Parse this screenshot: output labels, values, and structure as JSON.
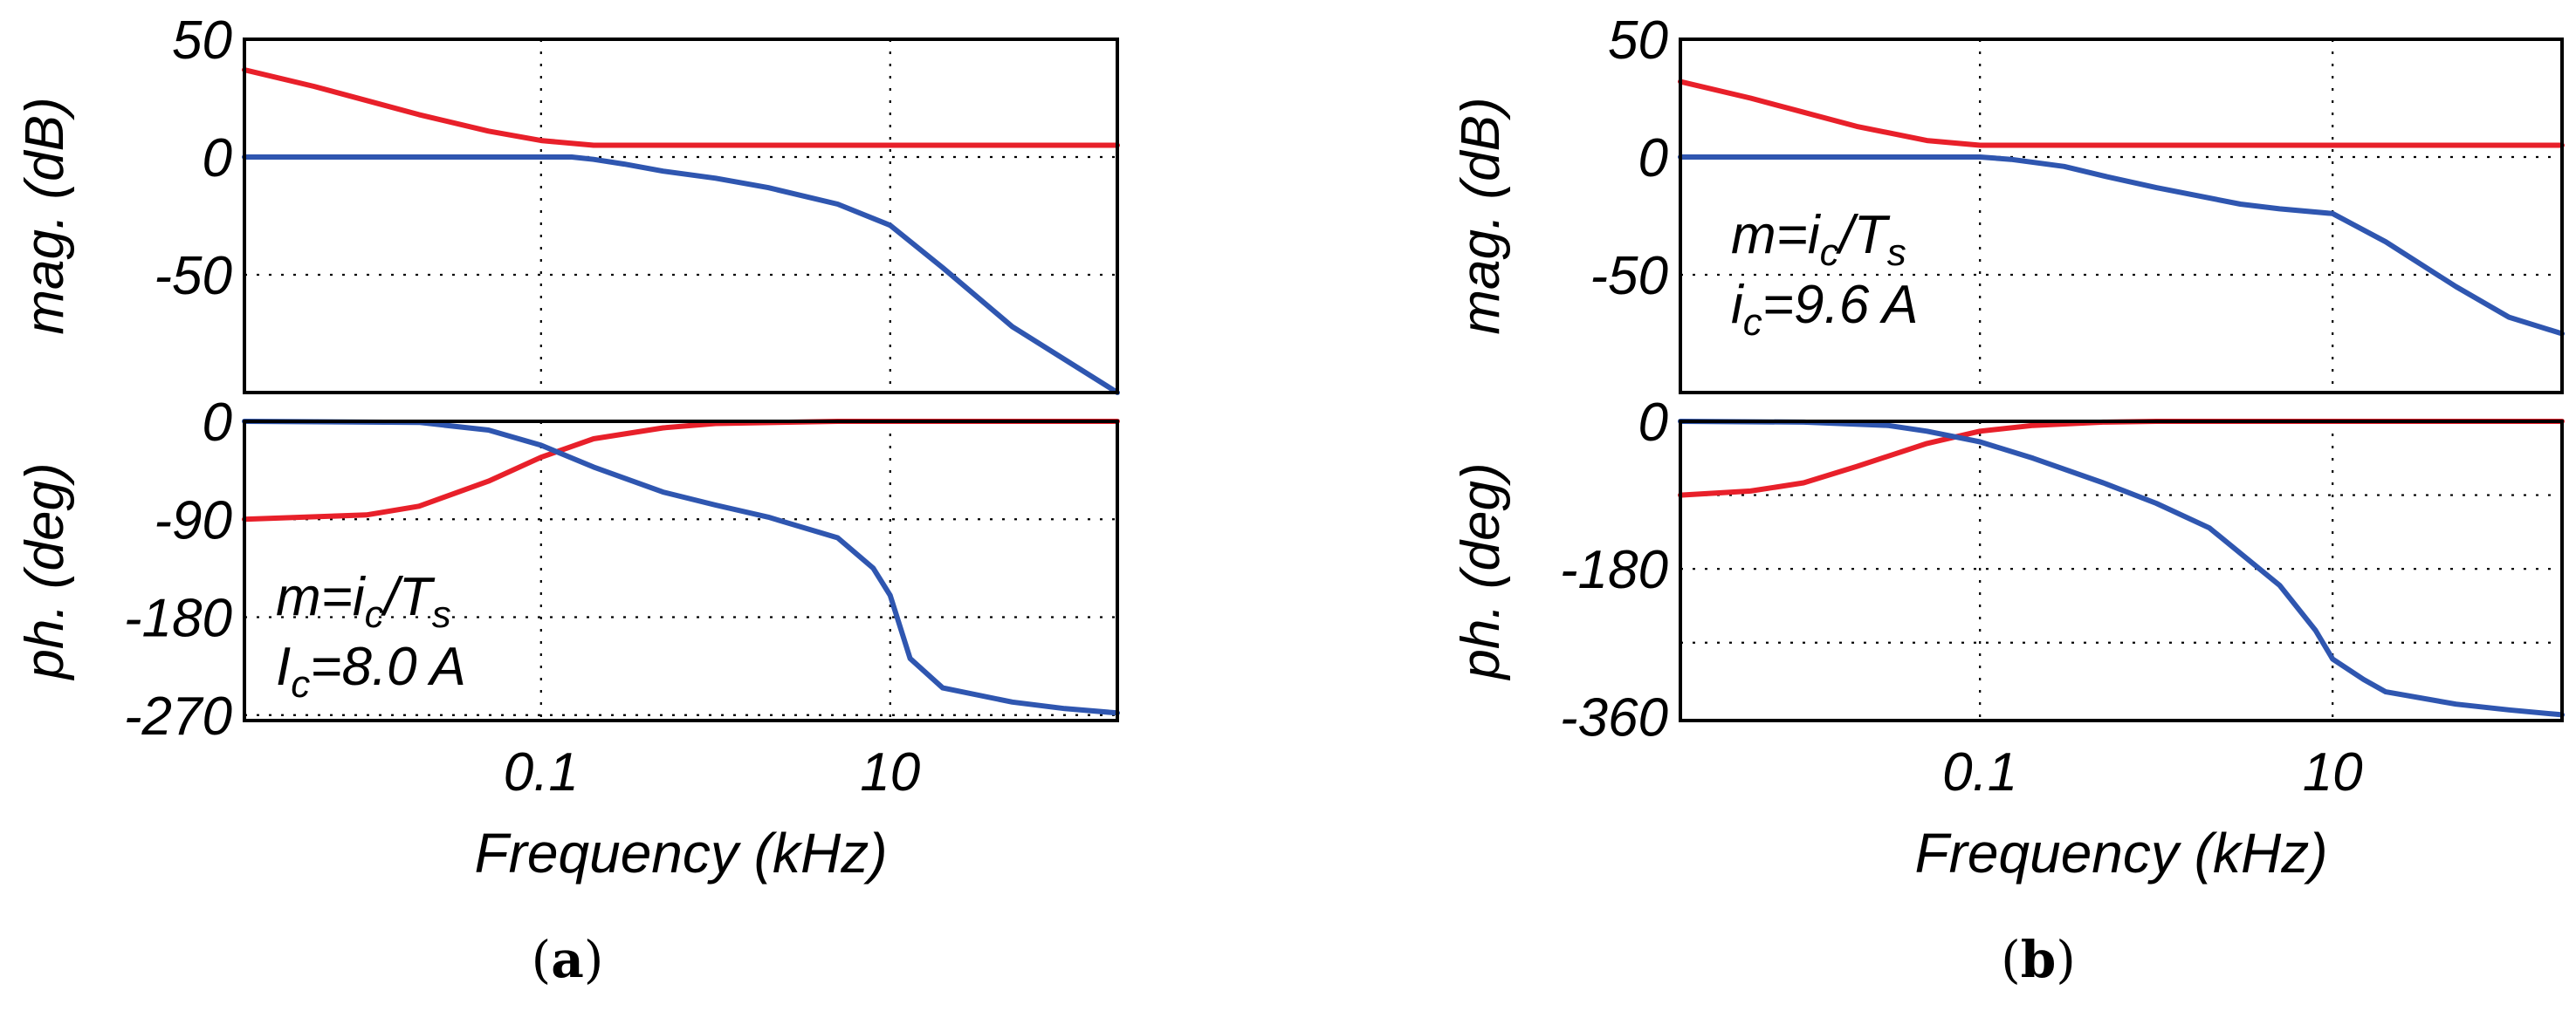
{
  "chart_data": [
    {
      "panel": "a",
      "caption_letter": "a",
      "type": "line",
      "xlabel": "Frequency  (kHz)",
      "xscale": "log",
      "xlim": [
        0.002,
        200
      ],
      "xticks": [
        {
          "v": 0.1,
          "label": "0.1"
        },
        {
          "v": 10,
          "label": "10"
        }
      ],
      "annotation": {
        "line1_base": "m=i",
        "line1_sub": "c",
        "line1_mid": "/T",
        "line1_sub2": "s",
        "line2_base": "I",
        "line2_sub": "c",
        "line2_rest": "=8.0 A"
      },
      "magnitude": {
        "ylabel": "mag. (dB)",
        "ylim": [
          -100,
          50
        ],
        "yticks": [
          {
            "v": 50,
            "label": "50"
          },
          {
            "v": 0,
            "label": "0"
          },
          {
            "v": -50,
            "label": "-50"
          }
        ],
        "series": [
          {
            "name": "red",
            "color": "#e8202a",
            "x": [
              0.002,
              0.005,
              0.01,
              0.02,
              0.05,
              0.1,
              0.2,
              0.5,
              1,
              10,
              100,
              200
            ],
            "y": [
              37,
              30,
              24,
              18,
              11,
              7,
              5,
              5,
              5,
              5,
              5,
              5
            ]
          },
          {
            "name": "blue",
            "color": "#2f56b0",
            "x": [
              0.002,
              0.05,
              0.15,
              0.2,
              0.3,
              0.5,
              1,
              2,
              5,
              10,
              20,
              50,
              100,
              200
            ],
            "y": [
              0,
              0,
              0,
              -1,
              -3,
              -6,
              -9,
              -13,
              -20,
              -29,
              -47,
              -72,
              -86,
              -100
            ]
          }
        ]
      },
      "phase": {
        "ylabel": "ph. (deg)",
        "ylim": [
          -275,
          0
        ],
        "yticks": [
          {
            "v": 0,
            "label": "0"
          },
          {
            "v": -90,
            "label": "-90"
          },
          {
            "v": -180,
            "label": "-180"
          },
          {
            "v": -270,
            "label": "-270"
          }
        ],
        "series": [
          {
            "name": "red",
            "color": "#e8202a",
            "x": [
              0.002,
              0.01,
              0.02,
              0.05,
              0.1,
              0.2,
              0.5,
              1,
              5,
              10,
              200
            ],
            "y": [
              -90,
              -86,
              -78,
              -55,
              -33,
              -16,
              -6,
              -2,
              0,
              0,
              0
            ]
          },
          {
            "name": "blue",
            "color": "#2f56b0",
            "x": [
              0.002,
              0.02,
              0.05,
              0.1,
              0.2,
              0.5,
              1,
              2,
              5,
              8,
              10,
              13,
              20,
              50,
              100,
              200
            ],
            "y": [
              0,
              -1,
              -8,
              -22,
              -42,
              -65,
              -77,
              -88,
              -107,
              -135,
              -160,
              -218,
              -245,
              -258,
              -264,
              -268
            ]
          }
        ]
      }
    },
    {
      "panel": "b",
      "caption_letter": "b",
      "type": "line",
      "xlabel": "Frequency  (kHz)",
      "xscale": "log",
      "xlim": [
        0.002,
        200
      ],
      "xticks": [
        {
          "v": 0.1,
          "label": "0.1"
        },
        {
          "v": 10,
          "label": "10"
        }
      ],
      "annotation": {
        "line1_base": "m=i",
        "line1_sub": "c",
        "line1_mid": "/T",
        "line1_sub2": "s",
        "line2_base": "i",
        "line2_sub": "c",
        "line2_rest": "=9.6 A"
      },
      "magnitude": {
        "ylabel": "mag. (dB)",
        "ylim": [
          -100,
          50
        ],
        "yticks": [
          {
            "v": 50,
            "label": "50"
          },
          {
            "v": 0,
            "label": "0"
          },
          {
            "v": -50,
            "label": "-50"
          }
        ],
        "series": [
          {
            "name": "red",
            "color": "#e8202a",
            "x": [
              0.002,
              0.005,
              0.01,
              0.02,
              0.05,
              0.1,
              0.2,
              0.5,
              1,
              10,
              100,
              200
            ],
            "y": [
              32,
              25,
              19,
              13,
              7,
              5,
              5,
              5,
              5,
              5,
              5,
              5
            ]
          },
          {
            "name": "blue",
            "color": "#2f56b0",
            "x": [
              0.002,
              0.05,
              0.1,
              0.15,
              0.3,
              0.5,
              1,
              3,
              5,
              10,
              20,
              50,
              100,
              200
            ],
            "y": [
              0,
              0,
              0,
              -1,
              -4,
              -8,
              -13,
              -20,
              -22,
              -24,
              -36,
              -55,
              -68,
              -75
            ]
          }
        ]
      },
      "phase": {
        "ylabel": "ph. (deg)",
        "ylim": [
          -365,
          0
        ],
        "yticks": [
          {
            "v": 0,
            "label": "0"
          },
          {
            "v": -180,
            "label": "-180"
          },
          {
            "v": -360,
            "label": "-360"
          }
        ],
        "ygrid": [
          -90,
          -180,
          -270
        ],
        "series": [
          {
            "name": "red",
            "color": "#e8202a",
            "x": [
              0.002,
              0.005,
              0.01,
              0.02,
              0.05,
              0.1,
              0.2,
              0.5,
              1,
              10,
              200
            ],
            "y": [
              -90,
              -85,
              -75,
              -55,
              -27,
              -12,
              -5,
              -1,
              0,
              0,
              0
            ]
          },
          {
            "name": "blue",
            "color": "#2f56b0",
            "x": [
              0.002,
              0.01,
              0.03,
              0.05,
              0.1,
              0.2,
              0.5,
              1,
              2,
              5,
              8,
              10,
              15,
              20,
              50,
              100,
              200
            ],
            "y": [
              0,
              -1,
              -5,
              -12,
              -25,
              -45,
              -75,
              -100,
              -130,
              -200,
              -255,
              -290,
              -315,
              -330,
              -345,
              -352,
              -358
            ]
          }
        ]
      }
    }
  ]
}
